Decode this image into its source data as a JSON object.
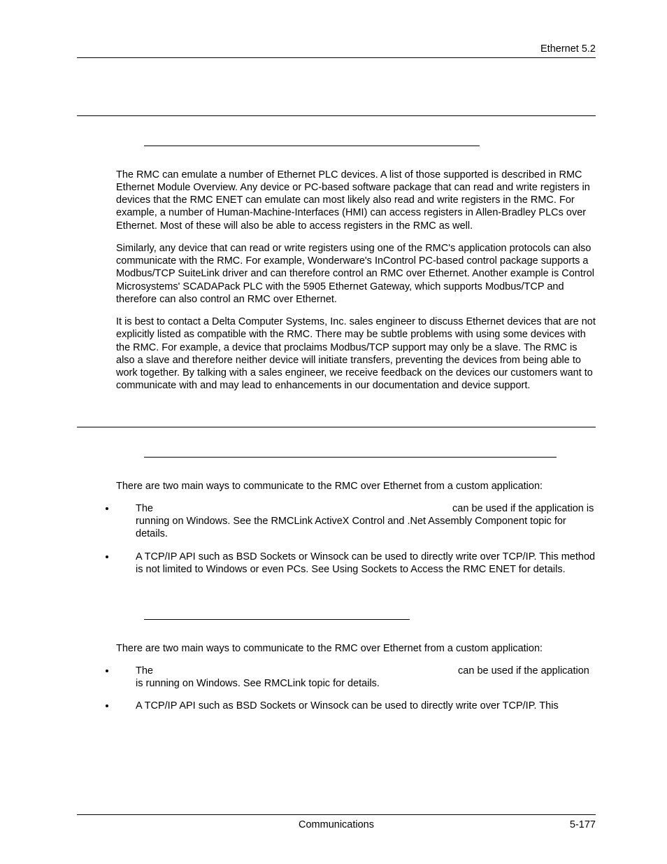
{
  "page": {
    "header_text": "Ethernet  5.2",
    "footer_center": "Communications",
    "footer_right": "5-177"
  },
  "section1": {
    "p1": "The RMC can emulate a number of Ethernet PLC devices. A list of those supported is described in RMC Ethernet Module Overview. Any device or PC-based software package that can read and write registers in devices that the RMC ENET can emulate can most likely also read and write registers in the RMC. For example, a number of Human-Machine-Interfaces (HMI) can access registers in Allen-Bradley PLCs over Ethernet. Most of these will also be able to access registers in the RMC as well.",
    "p2": "Similarly, any device that can read or write registers using one of the RMC's application protocols can also communicate with the RMC. For example, Wonderware's InControl PC-based control package supports a Modbus/TCP SuiteLink driver and can therefore control an RMC over Ethernet. Another example is Control Microsystems' SCADAPack PLC with the 5905 Ethernet Gateway, which supports Modbus/TCP and therefore can also control an RMC over Ethernet.",
    "p3": "It is best to contact a Delta Computer Systems, Inc. sales engineer to discuss Ethernet devices that are not explicitly listed as compatible with the RMC. There may be subtle problems with using some devices with the RMC. For example, a device that proclaims Modbus/TCP support may only be a slave. The RMC is also a slave and therefore neither device will initiate transfers, preventing the devices from being able to work together. By talking with a sales engineer, we receive feedback on the devices our customers want to communicate with and may lead to enhancements in our documentation and device support."
  },
  "section2": {
    "intro": "There are two main ways to communicate to the RMC over Ethernet from a custom application:",
    "b1_a": "The ",
    "b1_b": " can be used if the application is running on Windows. See the RMCLink ActiveX Control and .Net Assembly Component topic for details.",
    "b2": "A TCP/IP API such as BSD Sockets or Winsock can be used to directly write over TCP/IP. This method is not limited to Windows or even PCs. See Using Sockets to Access the RMC ENET for details."
  },
  "section3": {
    "intro": "There are two main ways to communicate to the RMC over Ethernet from a custom application:",
    "b1_a": "The ",
    "b1_b": " can be used if the application is running on Windows. See RMCLink topic for details.",
    "b2": "A TCP/IP API such as BSD Sockets or Winsock can be used to directly write over TCP/IP. This"
  }
}
